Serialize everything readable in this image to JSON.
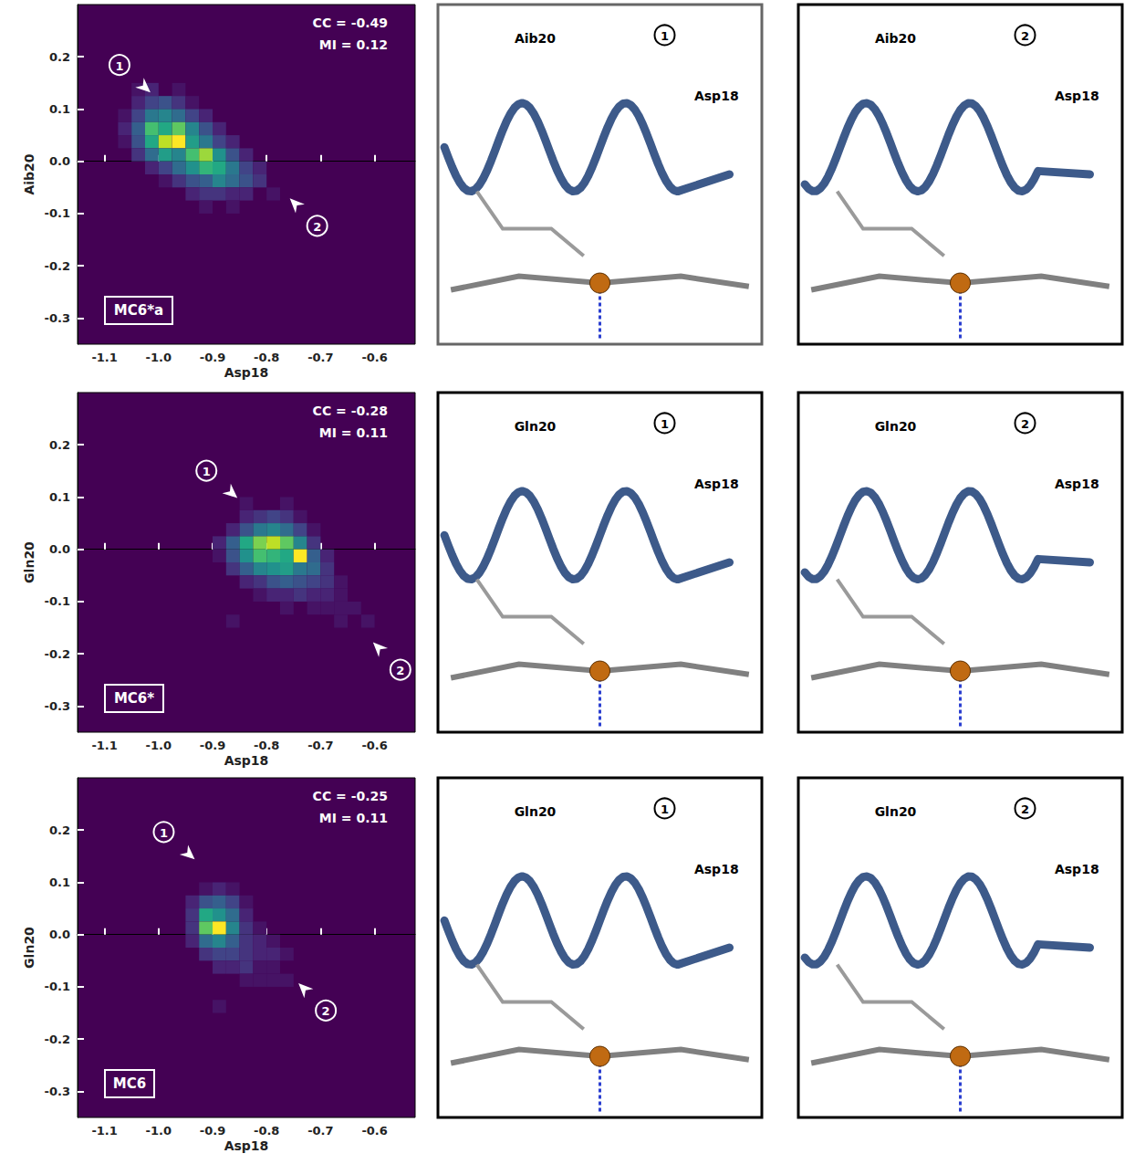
{
  "chart_data": [
    {
      "type": "heatmap",
      "label": "MC6*a",
      "x_label": "Asp18",
      "y_label": "Aib20",
      "annotations": [
        "CC = -0.49",
        "MI = 0.12"
      ],
      "xlim": [
        -1.15,
        -0.525
      ],
      "ylim": [
        -0.35,
        0.3
      ],
      "xticks": [
        -1.1,
        {
          "value": -1.0,
          "label": "-1.0"
        },
        -0.9,
        -0.8,
        -0.7,
        -0.6
      ],
      "yticks": [
        -0.3,
        -0.2,
        -0.1,
        {
          "value": 0,
          "label": "0.0"
        },
        0.1,
        0.2
      ],
      "bin_size": 0.025,
      "cells": [
        [
          -1.05,
          0.125,
          1
        ],
        [
          -1.025,
          0.125,
          2
        ],
        [
          -0.975,
          0.125,
          1
        ],
        [
          -1.05,
          0.1,
          2
        ],
        [
          -1.025,
          0.1,
          4
        ],
        [
          -1.0,
          0.1,
          5
        ],
        [
          -0.975,
          0.1,
          3
        ],
        [
          -0.95,
          0.1,
          1
        ],
        [
          -1.075,
          0.075,
          1
        ],
        [
          -1.05,
          0.075,
          4
        ],
        [
          -1.025,
          0.075,
          8
        ],
        [
          -1.0,
          0.075,
          9
        ],
        [
          -0.975,
          0.075,
          7
        ],
        [
          -0.95,
          0.075,
          4
        ],
        [
          -0.925,
          0.075,
          2
        ],
        [
          -1.075,
          0.05,
          2
        ],
        [
          -1.05,
          0.05,
          6
        ],
        [
          -1.025,
          0.05,
          14
        ],
        [
          -1.0,
          0.05,
          12
        ],
        [
          -0.975,
          0.05,
          15
        ],
        [
          -0.95,
          0.05,
          9
        ],
        [
          -0.925,
          0.05,
          5
        ],
        [
          -0.9,
          0.05,
          2
        ],
        [
          -1.075,
          0.025,
          1
        ],
        [
          -1.05,
          0.025,
          5
        ],
        [
          -1.025,
          0.025,
          12
        ],
        [
          -1.0,
          0.025,
          18
        ],
        [
          -0.975,
          0.025,
          20
        ],
        [
          -0.95,
          0.025,
          11
        ],
        [
          -0.925,
          0.025,
          8
        ],
        [
          -0.9,
          0.025,
          4
        ],
        [
          -0.875,
          0.025,
          2
        ],
        [
          -1.05,
          0.0,
          3
        ],
        [
          -1.025,
          0.0,
          7
        ],
        [
          -1.0,
          0.0,
          11
        ],
        [
          -0.975,
          0.0,
          9
        ],
        [
          -0.95,
          0.0,
          14
        ],
        [
          -0.925,
          0.0,
          17
        ],
        [
          -0.9,
          0.0,
          10
        ],
        [
          -0.875,
          0.0,
          5
        ],
        [
          -0.85,
          0.0,
          2
        ],
        [
          -1.025,
          -0.025,
          2
        ],
        [
          -1.0,
          -0.025,
          4
        ],
        [
          -0.975,
          -0.025,
          7
        ],
        [
          -0.95,
          -0.025,
          10
        ],
        [
          -0.925,
          -0.025,
          13
        ],
        [
          -0.9,
          -0.025,
          12
        ],
        [
          -0.875,
          -0.025,
          8
        ],
        [
          -0.85,
          -0.025,
          4
        ],
        [
          -0.825,
          -0.025,
          2
        ],
        [
          -1.0,
          -0.05,
          1
        ],
        [
          -0.975,
          -0.05,
          3
        ],
        [
          -0.95,
          -0.05,
          5
        ],
        [
          -0.925,
          -0.05,
          6
        ],
        [
          -0.9,
          -0.05,
          9
        ],
        [
          -0.875,
          -0.05,
          7
        ],
        [
          -0.85,
          -0.05,
          5
        ],
        [
          -0.825,
          -0.05,
          3
        ],
        [
          -0.95,
          -0.075,
          2
        ],
        [
          -0.925,
          -0.075,
          3
        ],
        [
          -0.9,
          -0.075,
          3
        ],
        [
          -0.875,
          -0.075,
          2
        ],
        [
          -0.85,
          -0.075,
          2
        ],
        [
          -0.8,
          -0.075,
          1
        ],
        [
          -0.925,
          -0.1,
          1
        ],
        [
          -0.875,
          -0.1,
          1
        ]
      ],
      "markers": [
        {
          "label": "1",
          "x": -1.015,
          "y": 0.132
        },
        {
          "label": "2",
          "x": -0.757,
          "y": -0.071
        }
      ],
      "structures": [
        {
          "marker": "1",
          "labels": [
            "Aib20",
            "Asp18"
          ]
        },
        {
          "marker": "2",
          "labels": [
            "Aib20",
            "Asp18"
          ]
        }
      ]
    },
    {
      "type": "heatmap",
      "label": "MC6*",
      "x_label": "Asp18",
      "y_label": "Gln20",
      "annotations": [
        "CC = -0.28",
        "MI = 0.11"
      ],
      "xlim": [
        -1.15,
        -0.525
      ],
      "ylim": [
        -0.35,
        0.3
      ],
      "xticks": [
        -1.1,
        {
          "value": -1.0,
          "label": "-1.0"
        },
        -0.9,
        -0.8,
        -0.7,
        -0.6
      ],
      "yticks": [
        -0.3,
        -0.2,
        -0.1,
        {
          "value": 0,
          "label": "0.0"
        },
        0.1,
        0.2
      ],
      "bin_size": 0.025,
      "cells": [
        [
          -0.85,
          0.075,
          1
        ],
        [
          -0.775,
          0.075,
          1
        ],
        [
          -0.85,
          0.05,
          2
        ],
        [
          -0.825,
          0.05,
          3
        ],
        [
          -0.8,
          0.05,
          4
        ],
        [
          -0.775,
          0.05,
          3
        ],
        [
          -0.75,
          0.05,
          1
        ],
        [
          -0.875,
          0.025,
          2
        ],
        [
          -0.85,
          0.025,
          5
        ],
        [
          -0.825,
          0.025,
          8
        ],
        [
          -0.8,
          0.025,
          9
        ],
        [
          -0.775,
          0.025,
          7
        ],
        [
          -0.75,
          0.025,
          4
        ],
        [
          -0.725,
          0.025,
          1
        ],
        [
          -0.9,
          0.0,
          2
        ],
        [
          -0.875,
          0.0,
          6
        ],
        [
          -0.85,
          0.0,
          12
        ],
        [
          -0.825,
          0.0,
          16
        ],
        [
          -0.8,
          0.0,
          18
        ],
        [
          -0.775,
          0.0,
          15
        ],
        [
          -0.75,
          0.0,
          9
        ],
        [
          -0.725,
          0.0,
          3
        ],
        [
          -0.9,
          -0.025,
          1
        ],
        [
          -0.875,
          -0.025,
          5
        ],
        [
          -0.85,
          -0.025,
          10
        ],
        [
          -0.825,
          -0.025,
          14
        ],
        [
          -0.8,
          -0.025,
          13
        ],
        [
          -0.775,
          -0.025,
          12
        ],
        [
          -0.75,
          -0.025,
          20
        ],
        [
          -0.725,
          -0.025,
          6
        ],
        [
          -0.7,
          -0.025,
          2
        ],
        [
          -0.875,
          -0.05,
          3
        ],
        [
          -0.85,
          -0.05,
          6
        ],
        [
          -0.825,
          -0.05,
          9
        ],
        [
          -0.8,
          -0.05,
          10
        ],
        [
          -0.775,
          -0.05,
          11
        ],
        [
          -0.75,
          -0.05,
          8
        ],
        [
          -0.725,
          -0.05,
          7
        ],
        [
          -0.7,
          -0.05,
          3
        ],
        [
          -0.85,
          -0.075,
          2
        ],
        [
          -0.825,
          -0.075,
          3
        ],
        [
          -0.8,
          -0.075,
          5
        ],
        [
          -0.775,
          -0.075,
          6
        ],
        [
          -0.75,
          -0.075,
          5
        ],
        [
          -0.725,
          -0.075,
          4
        ],
        [
          -0.7,
          -0.075,
          3
        ],
        [
          -0.675,
          -0.075,
          1
        ],
        [
          -0.825,
          -0.1,
          1
        ],
        [
          -0.8,
          -0.1,
          2
        ],
        [
          -0.775,
          -0.1,
          2
        ],
        [
          -0.75,
          -0.1,
          3
        ],
        [
          -0.725,
          -0.1,
          2
        ],
        [
          -0.7,
          -0.1,
          2
        ],
        [
          -0.675,
          -0.1,
          1
        ],
        [
          -0.775,
          -0.125,
          1
        ],
        [
          -0.725,
          -0.125,
          1
        ],
        [
          -0.7,
          -0.125,
          1
        ],
        [
          -0.675,
          -0.125,
          1
        ],
        [
          -0.65,
          -0.125,
          1
        ],
        [
          -0.875,
          -0.15,
          1
        ],
        [
          -0.675,
          -0.15,
          1
        ],
        [
          -0.625,
          -0.15,
          1
        ]
      ],
      "markers": [
        {
          "label": "1",
          "x": -0.854,
          "y": 0.098
        },
        {
          "label": "2",
          "x": -0.603,
          "y": -0.178
        }
      ],
      "structures": [
        {
          "marker": "1",
          "labels": [
            "Gln20",
            "Asp18"
          ]
        },
        {
          "marker": "2",
          "labels": [
            "Gln20",
            "Asp18"
          ]
        }
      ]
    },
    {
      "type": "heatmap",
      "label": "MC6",
      "x_label": "Asp18",
      "y_label": "Gln20",
      "annotations": [
        "CC = -0.25",
        "MI = 0.11"
      ],
      "xlim": [
        -1.15,
        -0.525
      ],
      "ylim": [
        -0.35,
        0.3
      ],
      "xticks": [
        -1.1,
        {
          "value": -1.0,
          "label": "-1.0"
        },
        -0.9,
        -0.8,
        -0.7,
        -0.6
      ],
      "yticks": [
        -0.3,
        -0.2,
        -0.1,
        {
          "value": 0,
          "label": "0.0"
        },
        0.1,
        0.2
      ],
      "bin_size": 0.025,
      "cells": [
        [
          -0.925,
          0.075,
          1
        ],
        [
          -0.9,
          0.075,
          2
        ],
        [
          -0.875,
          0.075,
          1
        ],
        [
          -0.95,
          0.05,
          2
        ],
        [
          -0.925,
          0.05,
          5
        ],
        [
          -0.9,
          0.05,
          6
        ],
        [
          -0.875,
          0.05,
          4
        ],
        [
          -0.85,
          0.05,
          1
        ],
        [
          -0.95,
          0.025,
          3
        ],
        [
          -0.925,
          0.025,
          12
        ],
        [
          -0.9,
          0.025,
          10
        ],
        [
          -0.875,
          0.025,
          7
        ],
        [
          -0.85,
          0.025,
          2
        ],
        [
          -0.95,
          0.0,
          3
        ],
        [
          -0.925,
          0.0,
          15
        ],
        [
          -0.9,
          0.0,
          20
        ],
        [
          -0.875,
          0.0,
          9
        ],
        [
          -0.85,
          0.0,
          3
        ],
        [
          -0.825,
          0.0,
          1
        ],
        [
          -0.95,
          -0.025,
          2
        ],
        [
          -0.925,
          -0.025,
          7
        ],
        [
          -0.9,
          -0.025,
          9
        ],
        [
          -0.875,
          -0.025,
          6
        ],
        [
          -0.85,
          -0.025,
          3
        ],
        [
          -0.825,
          -0.025,
          2
        ],
        [
          -0.8,
          -0.025,
          1
        ],
        [
          -0.925,
          -0.05,
          3
        ],
        [
          -0.9,
          -0.05,
          4
        ],
        [
          -0.875,
          -0.05,
          4
        ],
        [
          -0.85,
          -0.05,
          3
        ],
        [
          -0.825,
          -0.05,
          2
        ],
        [
          -0.8,
          -0.05,
          2
        ],
        [
          -0.775,
          -0.05,
          1
        ],
        [
          -0.9,
          -0.075,
          2
        ],
        [
          -0.875,
          -0.075,
          2
        ],
        [
          -0.85,
          -0.075,
          3
        ],
        [
          -0.825,
          -0.075,
          1
        ],
        [
          -0.8,
          -0.075,
          1
        ],
        [
          -0.85,
          -0.1,
          1
        ],
        [
          -0.825,
          -0.1,
          1
        ],
        [
          -0.8,
          -0.1,
          1
        ],
        [
          -0.775,
          -0.1,
          1
        ],
        [
          -0.9,
          -0.15,
          1
        ]
      ],
      "markers": [
        {
          "label": "1",
          "x": -0.933,
          "y": 0.144
        },
        {
          "label": "2",
          "x": -0.741,
          "y": -0.093
        }
      ],
      "structures": [
        {
          "marker": "1",
          "labels": [
            "Gln20",
            "Asp18"
          ]
        },
        {
          "marker": "2",
          "labels": [
            "Gln20",
            "Asp18"
          ]
        }
      ]
    }
  ]
}
